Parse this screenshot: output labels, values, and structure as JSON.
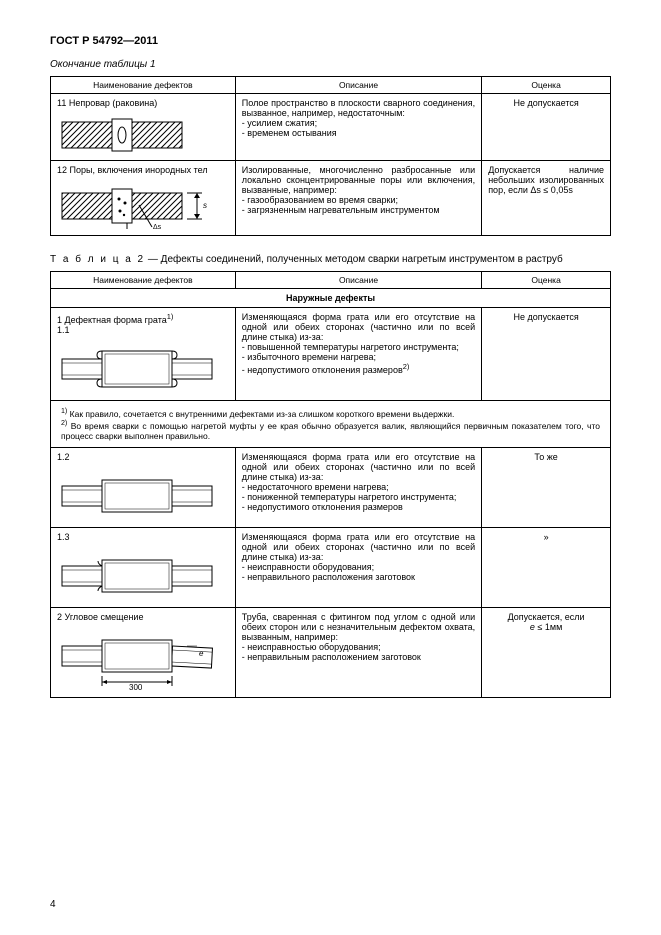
{
  "doc_header": "ГОСТ Р 54792—2011",
  "table1_caption": "Окончание таблицы 1",
  "table_headers": {
    "col1": "Наименование дефектов",
    "col2": "Описание",
    "col3": "Оценка"
  },
  "table1": {
    "rows": [
      {
        "name": "11 Непровар (раковина)",
        "desc": "Полое пространство в плоскости сварного соединения, вызванное, например, недостаточным:\n- усилием сжатия;\n- временем остывания",
        "eval": "Не допускается"
      },
      {
        "name": "12 Поры, включения инородных тел",
        "desc": "Изолированные, многочисленно разбросанные или локально сконцентрированные поры или включения, вызванные, например:\n- газообразованием во время сварки;\n- загрязненным нагревательным инструментом",
        "eval": "Допускается наличие небольших изолированных пор, если Δs ≤ 0,05s"
      }
    ]
  },
  "table2_title_prefix": "Т а б л и ц а  2",
  "table2_title_rest": " — Дефекты соединений, полученных методом сварки нагретым инструментом в раструб",
  "table2": {
    "section": "Наружные дефекты",
    "rows": [
      {
        "name_html": "1 Дефектная форма грата<sup>1)</sup><br>1.1",
        "desc_html": "Изменяющаяся форма грата или его отсутствие на одной или обеих сторонах (частично или по всей длине стыка) из-за:<br>- повышенной температуры нагретого инструмента;<br>- избыточного времени нагрева;<br>- недопустимого отклонения размеров<sup>2)</sup>",
        "eval": "Не допускается"
      },
      {
        "footnote_html": "<sup>1)</sup> Как правило, сочетается с внутренними дефектами из-за слишком короткого времени выдержки.<br><sup>2)</sup> Во время сварки с помощью нагретой муфты у ее края обычно образуется валик, являющийся первичным показателем того, что процесс сварки выполнен правильно."
      },
      {
        "name": "1.2",
        "desc": "Изменяющаяся форма грата или его отсутствие на одной или обеих сторонах (частично или по всей длине стыка) из-за:\n- недостаточного времени нагрева;\n- пониженной температуры нагретого инструмента;\n- недопустимого отклонения размеров",
        "eval": "То же"
      },
      {
        "name": "1.3",
        "desc": "Изменяющаяся форма грата или его отсутствие на одной или обеих сторонах (частично или по всей длине стыка) из-за:\n- неисправности оборудования;\n- неправильного расположения заготовок",
        "eval": "»"
      },
      {
        "name": "2 Угловое смещение",
        "desc": "Труба, сваренная с фитингом под углом с одной или обеих сторон или с незначительным дефектом охвата, вызванным, например:\n- неисправностью оборудования;\n- неправильным расположением заготовок",
        "eval_html": "Допускается, если<br><i>e</i> ≤ 1мм"
      }
    ]
  },
  "page_number": "4",
  "colors": {
    "text": "#000000",
    "bg": "#ffffff",
    "border": "#000000",
    "hatch": "#000000"
  }
}
